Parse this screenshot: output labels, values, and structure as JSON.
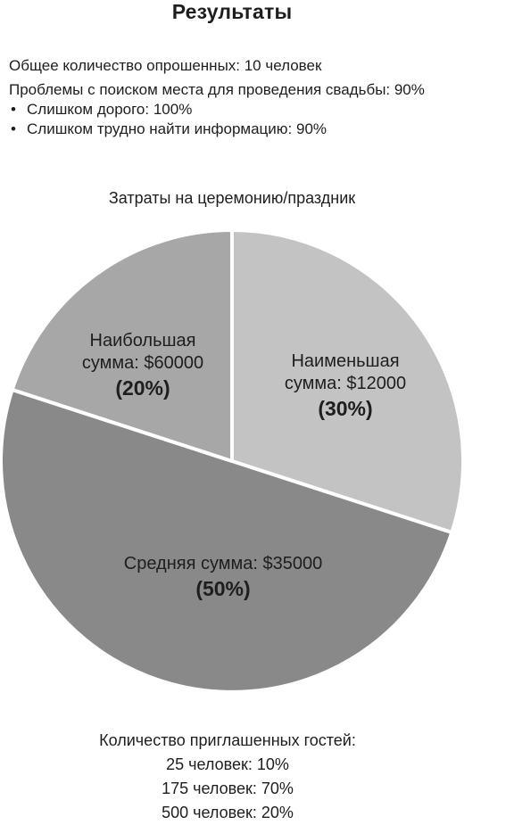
{
  "title": "Результаты",
  "summary": {
    "respondents": "Общее количество опрошенных: 10 человек",
    "venue_problems": "Проблемы с поиском места для проведения свадьбы: 90%",
    "reasons": [
      "Слишком дорого: 100%",
      "Слишком трудно найти информацию: 90%"
    ]
  },
  "chart_data": {
    "type": "pie",
    "title": "Затраты на церемонию/праздник",
    "slices": [
      {
        "label_lines": [
          "Наименьшая",
          "сумма: $12000"
        ],
        "percent_label": "(30%)",
        "value": 30,
        "color": "#c3c3c3"
      },
      {
        "label_lines": [
          "Средняя сумма: $35000"
        ],
        "percent_label": "(50%)",
        "value": 50,
        "color": "#898989"
      },
      {
        "label_lines": [
          "Наибольшая",
          "сумма: $60000"
        ],
        "percent_label": "(20%)",
        "value": 20,
        "color": "#a7a7a7"
      }
    ],
    "start": "12 o'clock",
    "direction": "clockwise",
    "legend": "none"
  },
  "guests": {
    "heading": "Количество приглашенных гостей:",
    "lines": [
      "25 человек: 10%",
      "175 человек: 70%",
      "500 человек: 20%"
    ]
  }
}
